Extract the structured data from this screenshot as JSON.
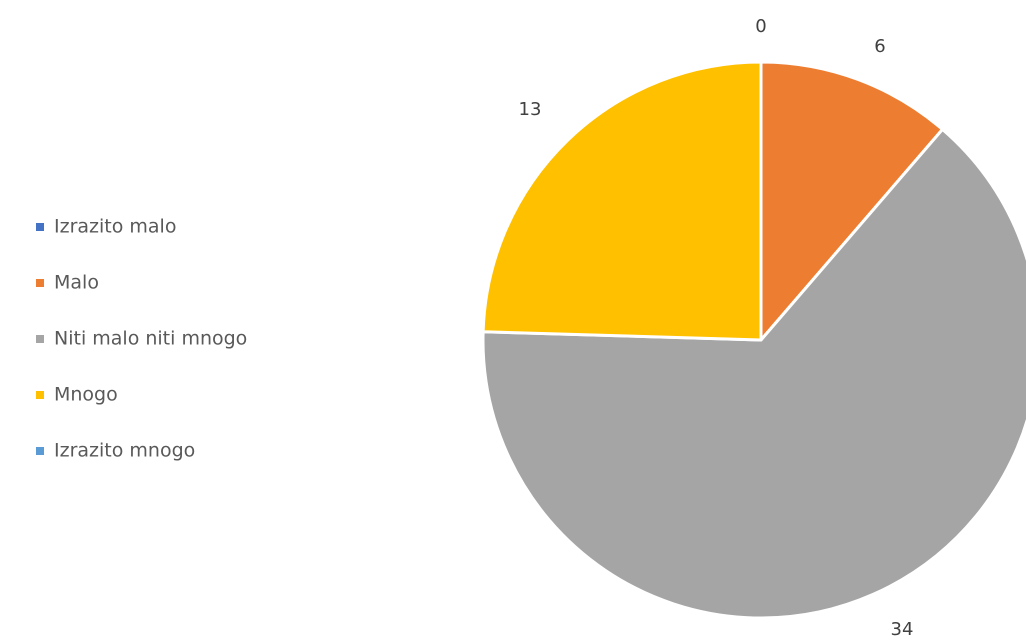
{
  "chart_data": {
    "type": "pie",
    "title": "",
    "categories": [
      "Izrazito malo",
      "Malo",
      "Niti malo niti mnogo",
      "Mnogo",
      "Izrazito mnogo"
    ],
    "values": [
      0,
      6,
      34,
      13,
      0
    ],
    "colors": [
      "#4472C4",
      "#ED7D31",
      "#A5A5A5",
      "#FFC000",
      "#5B9BD5"
    ],
    "data_labels": [
      "0",
      "6",
      "34",
      "13",
      ""
    ],
    "start_angle_deg": 0,
    "direction": "clockwise",
    "legend_position": "left",
    "show_data_labels": true
  }
}
